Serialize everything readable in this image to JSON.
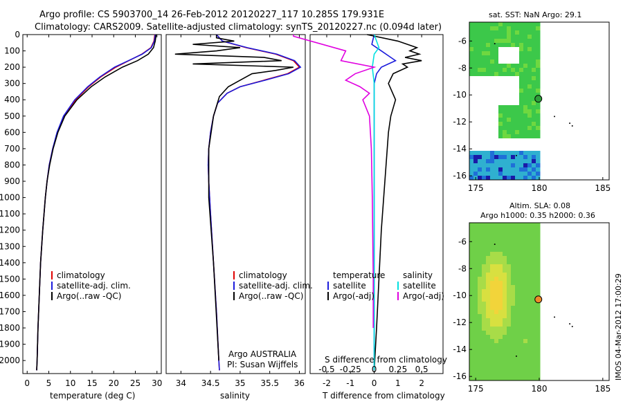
{
  "title": {
    "line1": "Argo profile: CS 5903700_14 26-Feb-2012 20120227_117 10.285S 179.931E",
    "line2": "Climatology: CARS2009. Satellite-adjusted climatology: synTS_20120227.nc (0.094d later)"
  },
  "colors": {
    "climatology": "#e00000",
    "satellite": "#1a1adc",
    "argo": "#000000",
    "salinity_sat": "#00e0e0",
    "salinity_argo": "#e000e0"
  },
  "chart_data": [
    {
      "type": "line",
      "name": "temperature",
      "xlabel": "temperature (deg C)",
      "xlim": [
        -1,
        31
      ],
      "ylim": [
        2080,
        0
      ],
      "xticks": [
        0,
        5,
        10,
        15,
        20,
        25,
        30
      ],
      "yticks": [
        0,
        100,
        200,
        300,
        400,
        500,
        600,
        700,
        800,
        900,
        1000,
        1100,
        1200,
        1300,
        1400,
        1500,
        1600,
        1700,
        1800,
        1900,
        2000
      ],
      "legend": [
        "climatology",
        "satellite-adj. clim.",
        "Argo(..raw -QC)"
      ],
      "series": [
        {
          "name": "climatology",
          "depth": [
            0,
            40,
            80,
            120,
            160,
            200,
            260,
            320,
            400,
            500,
            600,
            700,
            800,
            900,
            1000,
            1200,
            1400,
            1600,
            1800,
            2000,
            2060
          ],
          "values": [
            29.5,
            29.3,
            28.6,
            26.5,
            23.5,
            20.5,
            17.0,
            14.2,
            11.2,
            8.5,
            7.0,
            5.9,
            5.1,
            4.6,
            4.2,
            3.6,
            3.1,
            2.8,
            2.5,
            2.3,
            2.2
          ]
        },
        {
          "name": "satellite-adj. clim.",
          "depth": [
            0,
            40,
            80,
            120,
            160,
            200,
            260,
            320,
            400,
            500,
            600,
            700,
            800,
            900,
            1000,
            1200,
            1400,
            1600,
            1800,
            2000,
            2060
          ],
          "values": [
            29.6,
            29.4,
            28.7,
            26.6,
            23.4,
            20.2,
            16.8,
            14.0,
            11.0,
            8.4,
            6.9,
            5.9,
            5.1,
            4.6,
            4.2,
            3.6,
            3.1,
            2.8,
            2.5,
            2.3,
            2.2
          ]
        },
        {
          "name": "Argo(..raw -QC)",
          "depth": [
            0,
            40,
            80,
            120,
            160,
            200,
            260,
            320,
            400,
            500,
            600,
            700,
            800,
            900,
            1000,
            1200,
            1400,
            1600,
            1800,
            2000,
            2060
          ],
          "values": [
            29.8,
            29.6,
            29.2,
            28.0,
            25.5,
            22.0,
            18.0,
            14.8,
            11.5,
            8.7,
            7.1,
            6.0,
            5.2,
            4.6,
            4.2,
            3.6,
            3.1,
            2.8,
            2.5,
            2.3,
            2.2
          ]
        }
      ]
    },
    {
      "type": "line",
      "name": "salinity",
      "xlabel": "salinity",
      "xlim": [
        33.75,
        36.1
      ],
      "ylim": [
        2080,
        0
      ],
      "xticks": [
        34,
        34.5,
        35,
        35.5,
        36
      ],
      "legend": [
        "climatology",
        "satellite-adj. clim.",
        "Argo(..raw -QC)"
      ],
      "footer": [
        "Argo AUSTRALIA",
        "PI: Susan Wijffels"
      ],
      "series": [
        {
          "name": "climatology",
          "depth": [
            0,
            40,
            80,
            120,
            160,
            200,
            240,
            280,
            320,
            360,
            420,
            500,
            600,
            700,
            800,
            900,
            1100,
            1400,
            1700,
            2000,
            2060
          ],
          "values": [
            34.6,
            34.7,
            35.1,
            35.6,
            35.9,
            36.0,
            35.8,
            35.4,
            35.0,
            34.78,
            34.62,
            34.55,
            34.5,
            34.47,
            34.46,
            34.47,
            34.5,
            34.55,
            34.6,
            34.64,
            34.65
          ]
        },
        {
          "name": "satellite-adj. clim.",
          "depth": [
            0,
            40,
            80,
            120,
            160,
            200,
            240,
            280,
            320,
            360,
            420,
            500,
            600,
            700,
            800,
            900,
            1100,
            1400,
            1700,
            2000,
            2060
          ],
          "values": [
            34.6,
            34.7,
            35.12,
            35.62,
            35.92,
            36.02,
            35.82,
            35.42,
            35.0,
            34.78,
            34.62,
            34.55,
            34.5,
            34.47,
            34.46,
            34.47,
            34.5,
            34.55,
            34.6,
            34.64,
            34.65
          ]
        },
        {
          "name": "Argo(..raw -QC)",
          "depth": [
            0,
            20,
            40,
            60,
            80,
            100,
            120,
            140,
            160,
            180,
            200,
            220,
            240,
            280,
            320,
            380,
            500,
            700,
            1000,
            1400,
            2000
          ],
          "values": [
            34.6,
            34.6,
            34.9,
            34.2,
            35.0,
            34.6,
            33.9,
            35.4,
            35.7,
            34.2,
            35.9,
            35.6,
            35.2,
            35.0,
            34.8,
            34.65,
            34.55,
            34.47,
            34.47,
            34.55,
            34.64
          ]
        }
      ]
    },
    {
      "type": "line",
      "name": "differences",
      "xlabel": "T difference from climatology",
      "xlabel2": "S difference from climatology",
      "xlim": [
        -2.7,
        2.9
      ],
      "xticks": [
        -2,
        -1,
        0,
        1,
        2
      ],
      "xticks2": [
        -0.5,
        -0.25,
        0,
        0.25,
        0.5
      ],
      "legend_temperature_title": "temperature",
      "legend_salinity_title": "salinity",
      "legend_temperature": [
        "satellite",
        "Argo(-adj)"
      ],
      "legend_salinity": [
        "satellite",
        "Argo(-adj)"
      ],
      "series": [
        {
          "name": "T satellite",
          "depth": [
            0,
            60,
            100,
            140,
            160,
            180,
            200,
            240,
            300,
            400,
            600,
            1000,
            1500,
            2060
          ],
          "values": [
            0.0,
            -0.1,
            0.3,
            0.7,
            0.9,
            0.6,
            0.3,
            0.1,
            0.0,
            0.0,
            0.0,
            0.0,
            0.0,
            0.0
          ]
        },
        {
          "name": "T Argo(-adj)",
          "depth": [
            0,
            40,
            80,
            100,
            120,
            140,
            160,
            180,
            200,
            240,
            300,
            400,
            500,
            600,
            800,
            1000,
            1200,
            1500,
            1800,
            2060
          ],
          "values": [
            -0.3,
            1.0,
            1.8,
            1.5,
            1.9,
            1.3,
            2.0,
            1.2,
            1.4,
            0.8,
            0.6,
            0.9,
            0.7,
            0.6,
            0.5,
            0.4,
            0.3,
            0.2,
            0.1,
            0.0
          ]
        },
        {
          "name": "S satellite",
          "depth": [
            0,
            80,
            120,
            200,
            300,
            500,
            1000,
            1500,
            2060
          ],
          "values": [
            0.0,
            0.05,
            0.0,
            -0.02,
            0.0,
            0.0,
            0.0,
            0.0,
            0.0
          ]
        },
        {
          "name": "S Argo(-adj)",
          "depth": [
            0,
            10,
            100,
            160,
            200,
            240,
            280,
            320,
            360,
            400,
            500,
            700,
            1000,
            1500,
            1800
          ],
          "values": [
            -0.85,
            -0.85,
            -0.3,
            -0.35,
            0.0,
            -0.2,
            -0.3,
            -0.15,
            -0.05,
            -0.12,
            -0.05,
            -0.03,
            -0.02,
            -0.01,
            -0.01
          ]
        }
      ]
    }
  ],
  "maps": {
    "sst": {
      "title": "sat. SST: NaN Argo: 29.1",
      "xticks": [
        "175",
        "180",
        "185"
      ],
      "yticks": [
        "-6",
        "-8",
        "-10",
        "-12",
        "-14",
        "-16"
      ],
      "marker_lon": 179.931,
      "marker_lat": -10.285,
      "marker_color": "#2e9e3a"
    },
    "sla": {
      "title": "Altim. SLA: 0.08",
      "subtitle": "Argo h1000: 0.35 h2000: 0.36",
      "xticks": [
        "175",
        "180",
        "185"
      ],
      "yticks": [
        "-6",
        "-8",
        "-10",
        "-12",
        "-14",
        "-16"
      ],
      "marker_lon": 179.931,
      "marker_lat": -10.285,
      "marker_color": "#ee8a2a"
    }
  },
  "footer_stamp": "IMOS 04-Mar-2012 17:00:29"
}
